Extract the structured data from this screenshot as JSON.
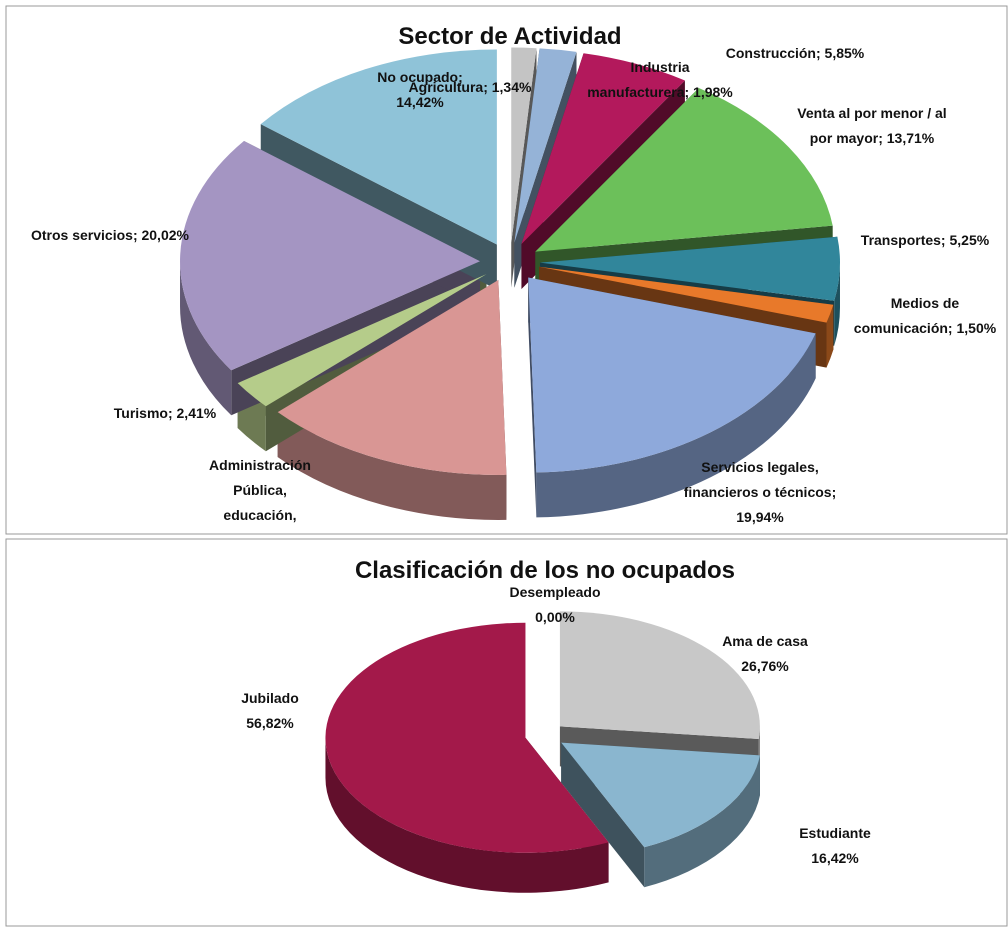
{
  "chart_data": [
    {
      "type": "pie",
      "title": "Sector de Actividad",
      "labels": [
        [
          "Agricultura; 1,34%"
        ],
        [
          "Industria",
          "manufacturera; 1,98%"
        ],
        [
          "Construcción; 5,85%"
        ],
        [
          "Venta al por menor / al",
          "por mayor; 13,71%"
        ],
        [
          "Transportes; 5,25%"
        ],
        [
          "Medios de",
          "comunicación; 1,50%"
        ],
        [
          "Servicios legales,",
          "financieros o técnicos;",
          "19,94%"
        ],
        [
          "Administración",
          "Pública,",
          "educación,"
        ],
        [
          "Turismo; 2,41%"
        ],
        [
          "Otros servicios; 20,02%"
        ],
        [
          "No ocupado;",
          "14,42%"
        ]
      ],
      "values": [
        1.34,
        1.98,
        5.85,
        13.71,
        5.25,
        1.5,
        19.94,
        13.58,
        2.41,
        20.02,
        14.42
      ],
      "colors": [
        "#c4c4c4",
        "#95b3d7",
        "#b3195c",
        "#6cc05a",
        "#31869b",
        "#e8792a",
        "#8ea9db",
        "#d99694",
        "#b5cc8a",
        "#a495c2",
        "#8fc3d8"
      ]
    },
    {
      "type": "pie",
      "title": "Clasificación de los no ocupados",
      "labels": [
        [
          "Desempleado",
          "0,00%"
        ],
        [
          "Ama de casa",
          "26,76%"
        ],
        [
          "Estudiante",
          "16,42%"
        ],
        [
          "Jubilado",
          "56,82%"
        ]
      ],
      "values": [
        0.0,
        26.76,
        16.42,
        56.82
      ],
      "colors": [
        "#999999",
        "#c8c8c8",
        "#8ab6cf",
        "#a3194a"
      ]
    }
  ]
}
